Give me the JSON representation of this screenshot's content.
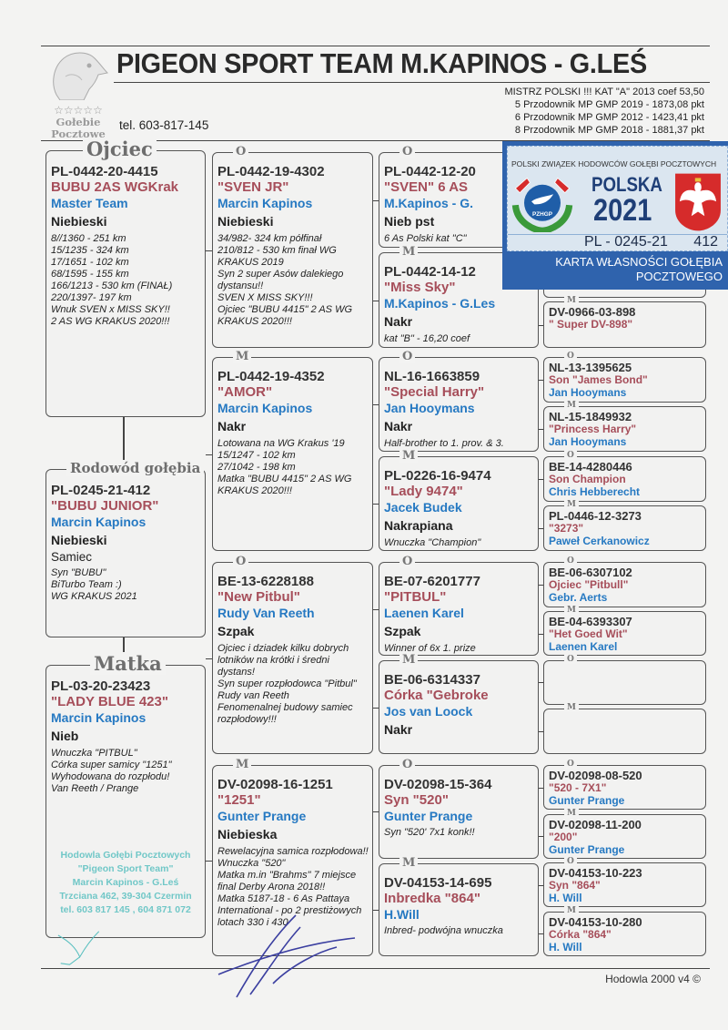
{
  "header": {
    "title": "PIGEON SPORT TEAM M.KAPINOS - G.LEŚ",
    "logo_stars": "☆☆☆☆☆",
    "logo_line1": "Gołebie",
    "logo_line2": "Pocztowe",
    "phone": "tel. 603-817-145",
    "achievements": [
      "MISTRZ POLSKI !!! KAT \"A\" 2013 coef 53,50",
      "5  Przodownik MP GMP 2019  - 1873,08 pkt",
      "6  Przodownik MP GMP 2012  - 1423,41 pkt",
      "8 Przodownik MP GMP 2018  - 1881,37 pkt"
    ]
  },
  "pedigree": {
    "col1": [
      {
        "label": "Ojciec",
        "id": "PL-0442-20-4415",
        "name": "BUBU 2AS WGKrak",
        "breeder": "Master Team",
        "color": "Niebieski",
        "notes": [
          "8//1360 - 251 km",
          "15/1235 - 324 km",
          "17/1651 - 102 km",
          "68/1595 - 155 km",
          "166/1213 - 530 km (FINAŁ)",
          "220/1397- 197 km",
          "Wnuk SVEN x MISS SKY!!",
          "2 AS WG KRAKUS 2020!!!"
        ]
      },
      {
        "label": "Rodowód gołębia",
        "id": "PL-0245-21-412",
        "name": "\"BUBU JUNIOR\"",
        "breeder": " Marcin Kapinos",
        "color": "Niebieski",
        "sex": "Samiec",
        "notes": [
          "Syn \"BUBU\"",
          "BiTurbo Team :)",
          "WG KRAKUS 2021"
        ]
      },
      {
        "label": "Matka",
        "id": "PL-03-20-23423",
        "name": "\"LADY BLUE 423\"",
        "breeder": " Marcin Kapinos",
        "color": "Nieb",
        "notes": [
          "Wnuczka \"PITBUL\"",
          "Córka super samicy \"1251\"",
          "Wyhodowana do rozpłodu!",
          "Van Reeth / Prange"
        ]
      }
    ],
    "col2": [
      {
        "label": "O",
        "id": "PL-0442-19-4302",
        "name": "\"SVEN JR\"",
        "breeder": " Marcin Kapinos",
        "color": "Niebieski",
        "notes": [
          "34/982- 324 km półfinał",
          "210/812 - 530 km finał WG KRAKUS 2019",
          "Syn 2 super Asów dalekiego dystansu!!",
          "SVEN X MISS SKY!!!",
          "Ojciec \"BUBU 4415\" 2 AS WG KRAKUS 2020!!!"
        ]
      },
      {
        "label": "M",
        "id": "PL-0442-19-4352",
        "name": "\"AMOR\"",
        "breeder": " Marcin Kapinos",
        "color": "Nakr",
        "notes": [
          "Lotowana na WG Krakus '19",
          "15/1247 - 102 km",
          "27/1042 - 198 km",
          "Matka \"BUBU 4415\" 2 AS WG KRAKUS 2020!!!"
        ]
      },
      {
        "label": "O",
        "id": "BE-13-6228188",
        "name": "\"New Pitbul\"",
        "breeder": "Rudy Van Reeth",
        "color": "Szpak",
        "notes": [
          "Ojciec i dziadek kilku dobrych lotników na krótki i średni dystans!",
          "Syn super rozpłodowca \"Pitbul\" Rudy van Reeth",
          "Fenomenalnej budowy samiec rozpłodowy!!!"
        ]
      },
      {
        "label": "M",
        "id": "DV-02098-16-1251",
        "name": "\"1251\"",
        "breeder": "Gunter Prange",
        "color": "Niebieska",
        "notes": [
          "Rewelacyjna samica rozpłodowa!!",
          "Wnuczka \"520\"",
          "Matka m.in \"Brahms\" 7 miejsce final Derby Arona 2018!!",
          "Matka 5187-18 - 6 As Pattaya International  - po 2 prestiżowych lotach 330 i 430"
        ]
      }
    ],
    "col3": [
      {
        "label": "O",
        "id": "PL-0442-12-20",
        "name": "\"SVEN\" 6 AS",
        "breeder": "M.Kapinos - G.",
        "color": "Nieb pst",
        "notes": [
          "6 As Polski kat \"C\""
        ]
      },
      {
        "label": "M",
        "id": "PL-0442-14-12",
        "name": "\"Miss Sky\"",
        "breeder": "M.Kapinos - G.Les",
        "color": "Nakr",
        "notes": [
          "kat \"B\" - 16,20 coef"
        ]
      },
      {
        "label": "O",
        "id": "NL-16-1663859",
        "name": "\"Special Harry\"",
        "breeder": "Jan Hooymans",
        "color": "Nakr",
        "notes": [
          "Half-brother to 1. prov. & 3."
        ]
      },
      {
        "label": "M",
        "id": "PL-0226-16-9474",
        "name": "\"Lady 9474\"",
        "breeder": "Jacek Budek",
        "color": "Nakrapiana",
        "notes": [
          "Wnuczka \"Champion\""
        ]
      },
      {
        "label": "O",
        "id": "BE-07-6201777",
        "name": "\"PITBUL\"",
        "breeder": "Laenen Karel",
        "color": "Szpak",
        "notes": [
          " Winner of 6x 1. prize"
        ]
      },
      {
        "label": "M",
        "id": "BE-06-6314337",
        "name": "Córka \"Gebroke",
        "breeder": "Jos van Loock",
        "color": "Nakr",
        "notes": []
      },
      {
        "label": "O",
        "id": "DV-02098-15-364",
        "name": "Syn \"520\"",
        "breeder": "Gunter Prange",
        "color": "",
        "notes": [
          "Syn \"520' 7x1 konk!!"
        ]
      },
      {
        "label": "M",
        "id": "DV-04153-14-695",
        "name": "Inbredka \"864\"",
        "breeder": "H.Will",
        "color": "",
        "notes": [
          "Inbred- podwójna wnuczka"
        ]
      }
    ],
    "col4": [
      {
        "label": "O"
      },
      {
        "label": "M"
      },
      {
        "label": "O"
      },
      {
        "label": "M",
        "id": "DV-0966-03-898",
        "name": "\" Super DV-898\""
      },
      {
        "label": "O",
        "id": "NL-13-1395625",
        "name": "Son \"James Bond\"",
        "breeder": "Jan Hooymans"
      },
      {
        "label": "M",
        "id": "NL-15-1849932",
        "name": "\"Princess Harry\"",
        "breeder": "Jan Hooymans"
      },
      {
        "label": "O",
        "id": "BE-14-4280446",
        "name": "Son Champion",
        "breeder": "Chris Hebberecht"
      },
      {
        "label": "M",
        "id": "PL-0446-12-3273",
        "name": "\"3273\"",
        "breeder": "Paweł Cerkanowicz"
      },
      {
        "label": "O",
        "id": "BE-06-6307102",
        "name": "Ojciec \"Pitbull\"",
        "breeder": "Gebr. Aerts"
      },
      {
        "label": "M",
        "id": "BE-04-6393307",
        "name": "\"Het Goed Wit\"",
        "breeder": "Laenen Karel"
      },
      {
        "label": "O"
      },
      {
        "label": "M"
      },
      {
        "label": "O",
        "id": "DV-02098-08-520",
        "name": "\"520 -  7X1\"",
        "breeder": "Gunter Prange"
      },
      {
        "label": "M",
        "id": "DV-02098-11-200",
        "name": "\"200\"",
        "breeder": "Gunter Prange"
      },
      {
        "label": "O",
        "id": "DV-04153-10-223",
        "name": "Syn \"864\"",
        "breeder": "H. Will"
      },
      {
        "label": "M",
        "id": "DV-04153-10-280",
        "name": "Córka \"864\"",
        "breeder": "H. Will"
      }
    ]
  },
  "ownership_card": {
    "org": "POLSKI ZWIĄZEK HODOWCÓW GOŁĘBI POCZTOWYCH",
    "logo_text": "PZHGP",
    "country": "POLSKA",
    "year": "2021",
    "ring_prefix": "PL - 0245-21",
    "ring_number": "412",
    "caption": "KARTA WŁASNOŚCI GOŁĘBIA POCZTOWEGO",
    "colors": {
      "frame": "#2f63ad",
      "red": "#d62b2b",
      "green": "#3a9a3a"
    }
  },
  "stamp": {
    "lines": [
      "Hodowla Gołębi Pocztowych",
      "\"Pigeon Sport Team\"",
      "Marcin Kapinos - G.Leś",
      "Trzciana 462, 39-304 Czermin",
      "tel. 603 817 145 , 604 871 072"
    ]
  },
  "footer": {
    "software": "Hodowla 2000 v4 ©"
  },
  "colors": {
    "name": "#a64e5a",
    "breeder": "#2679c2",
    "text": "#333333"
  }
}
